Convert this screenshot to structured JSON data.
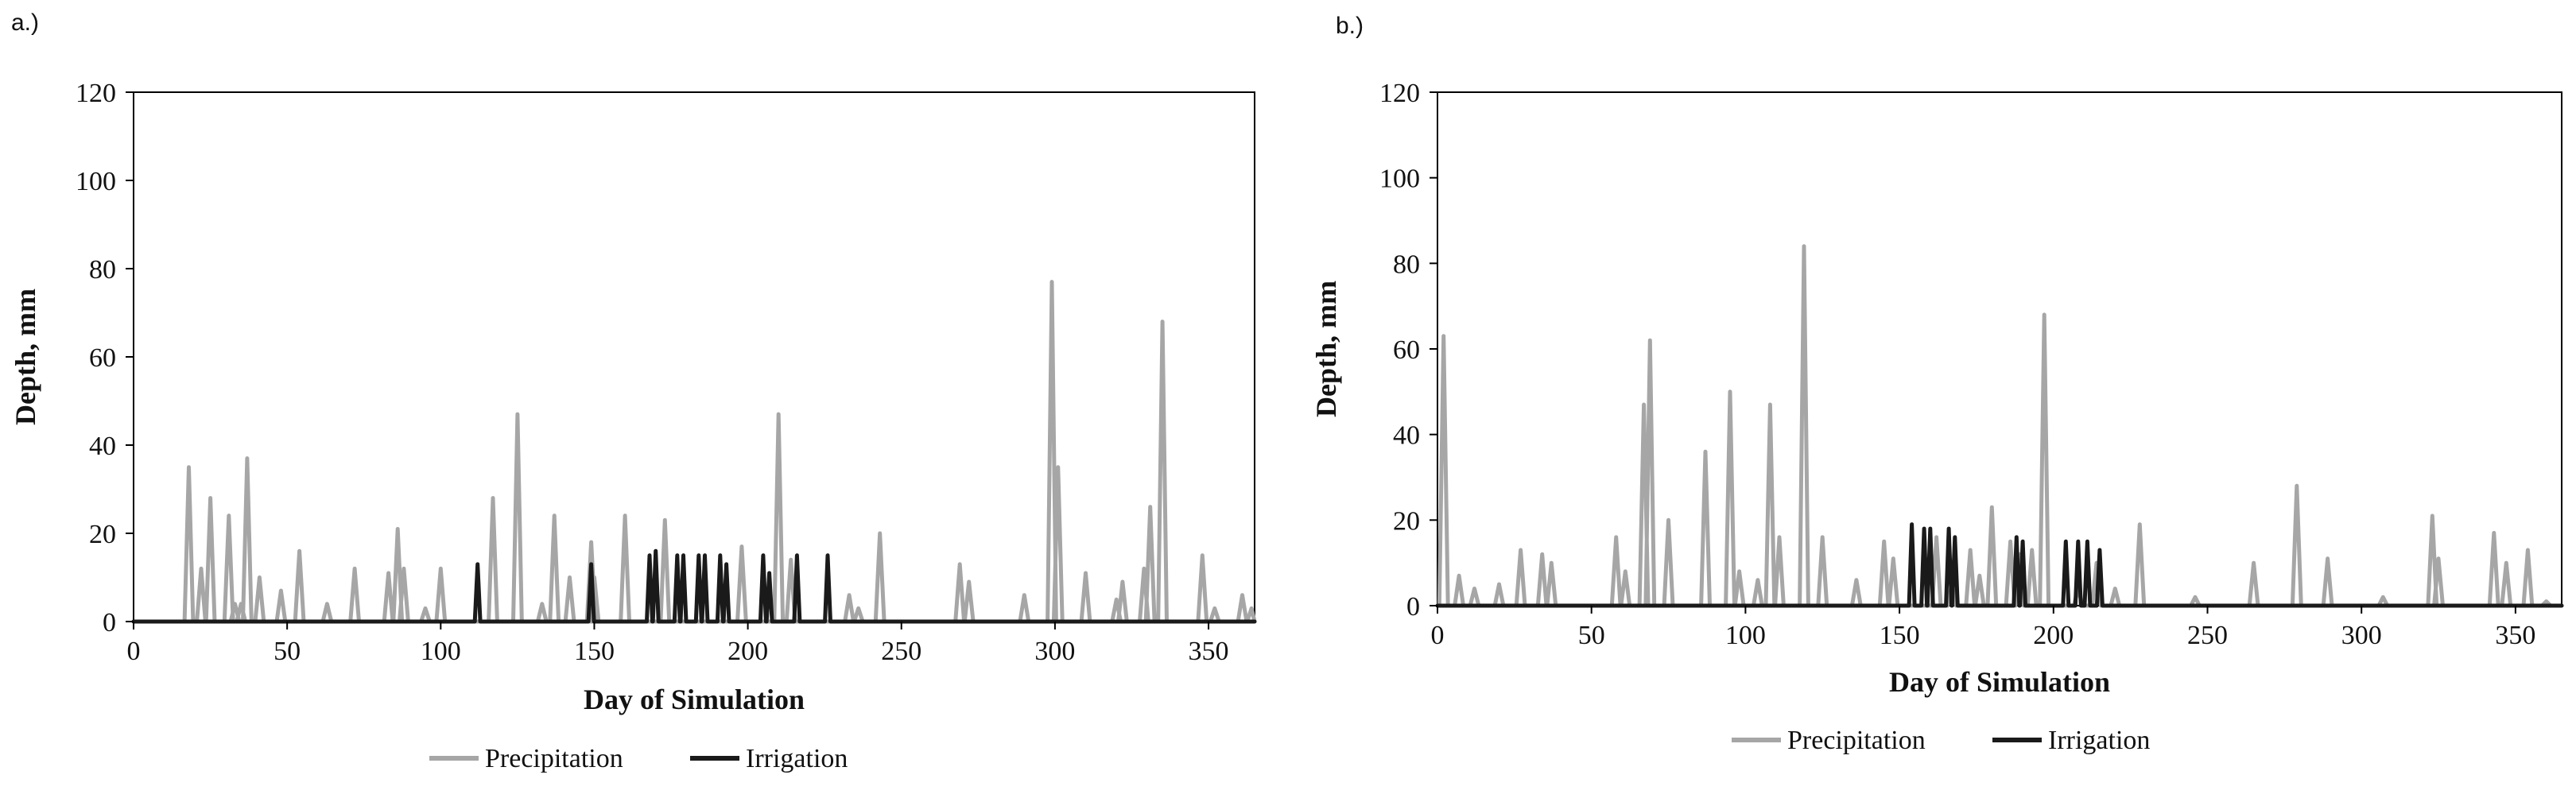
{
  "colors": {
    "precipitation": "#a6a6a6",
    "irrigation": "#1a1a1a",
    "axis": "#000000"
  },
  "chart_data": [
    {
      "panel_label": "a.)",
      "type": "line",
      "xlabel": "Day of Simulation",
      "ylabel": "Depth, mm",
      "xlim": [
        0,
        365
      ],
      "ylim": [
        0,
        120
      ],
      "xticks": [
        "0",
        "50",
        "100",
        "150",
        "200",
        "250",
        "300",
        "350"
      ],
      "yticks": [
        "0",
        "20",
        "40",
        "60",
        "80",
        "100",
        "120"
      ],
      "grid": false,
      "legend_position": "bottom-center",
      "legend": [
        "Precipitation",
        "Irrigation"
      ],
      "series": [
        {
          "name": "Precipitation",
          "color": "#a6a6a6",
          "events": [
            [
              18,
              35
            ],
            [
              22,
              12
            ],
            [
              25,
              28
            ],
            [
              31,
              24
            ],
            [
              33,
              4
            ],
            [
              35,
              4
            ],
            [
              37,
              37
            ],
            [
              41,
              10
            ],
            [
              48,
              7
            ],
            [
              54,
              16
            ],
            [
              63,
              4
            ],
            [
              72,
              12
            ],
            [
              83,
              11
            ],
            [
              86,
              21
            ],
            [
              88,
              12
            ],
            [
              95,
              3
            ],
            [
              100,
              12
            ],
            [
              117,
              28
            ],
            [
              125,
              47
            ],
            [
              133,
              4
            ],
            [
              137,
              24
            ],
            [
              142,
              10
            ],
            [
              149,
              18
            ],
            [
              150,
              10
            ],
            [
              160,
              24
            ],
            [
              173,
              23
            ],
            [
              198,
              17
            ],
            [
              210,
              47
            ],
            [
              214,
              14
            ],
            [
              233,
              6
            ],
            [
              236,
              3
            ],
            [
              243,
              20
            ],
            [
              269,
              13
            ],
            [
              272,
              9
            ],
            [
              290,
              6
            ],
            [
              299,
              77
            ],
            [
              301,
              35
            ],
            [
              310,
              11
            ],
            [
              320,
              5
            ],
            [
              322,
              9
            ],
            [
              329,
              12
            ],
            [
              331,
              26
            ],
            [
              335,
              68
            ],
            [
              348,
              15
            ],
            [
              352,
              3
            ],
            [
              361,
              6
            ],
            [
              364,
              3
            ]
          ]
        },
        {
          "name": "Irrigation",
          "color": "#1a1a1a",
          "events": [
            [
              112,
              13
            ],
            [
              149,
              13
            ],
            [
              168,
              15
            ],
            [
              170,
              16
            ],
            [
              177,
              15
            ],
            [
              179,
              15
            ],
            [
              184,
              15
            ],
            [
              186,
              15
            ],
            [
              191,
              15
            ],
            [
              193,
              13
            ],
            [
              205,
              15
            ],
            [
              207,
              11
            ],
            [
              216,
              15
            ],
            [
              226,
              15
            ]
          ]
        }
      ]
    },
    {
      "panel_label": "b.)",
      "type": "line",
      "xlabel": "Day of Simulation",
      "ylabel": "Depth, mm",
      "xlim": [
        0,
        365
      ],
      "ylim": [
        0,
        120
      ],
      "xticks": [
        "0",
        "50",
        "100",
        "150",
        "200",
        "250",
        "300",
        "350"
      ],
      "yticks": [
        "0",
        "20",
        "40",
        "60",
        "80",
        "100",
        "120"
      ],
      "grid": false,
      "legend_position": "bottom-center",
      "legend": [
        "Precipitation",
        "Irrigation"
      ],
      "series": [
        {
          "name": "Precipitation",
          "color": "#a6a6a6",
          "events": [
            [
              2,
              63
            ],
            [
              7,
              7
            ],
            [
              12,
              4
            ],
            [
              20,
              5
            ],
            [
              27,
              13
            ],
            [
              34,
              12
            ],
            [
              37,
              10
            ],
            [
              58,
              16
            ],
            [
              61,
              8
            ],
            [
              67,
              47
            ],
            [
              69,
              62
            ],
            [
              75,
              20
            ],
            [
              87,
              36
            ],
            [
              95,
              50
            ],
            [
              98,
              8
            ],
            [
              104,
              6
            ],
            [
              108,
              47
            ],
            [
              111,
              16
            ],
            [
              119,
              84
            ],
            [
              125,
              16
            ],
            [
              136,
              6
            ],
            [
              145,
              15
            ],
            [
              148,
              11
            ],
            [
              162,
              16
            ],
            [
              167,
              5
            ],
            [
              173,
              13
            ],
            [
              176,
              7
            ],
            [
              180,
              23
            ],
            [
              186,
              15
            ],
            [
              189,
              12
            ],
            [
              193,
              13
            ],
            [
              197,
              68
            ],
            [
              208,
              4
            ],
            [
              214,
              10
            ],
            [
              220,
              4
            ],
            [
              228,
              19
            ],
            [
              246,
              2
            ],
            [
              265,
              10
            ],
            [
              279,
              28
            ],
            [
              289,
              11
            ],
            [
              307,
              2
            ],
            [
              323,
              21
            ],
            [
              325,
              11
            ],
            [
              343,
              17
            ],
            [
              347,
              10
            ],
            [
              354,
              13
            ],
            [
              360,
              1
            ]
          ]
        },
        {
          "name": "Irrigation",
          "color": "#1a1a1a",
          "events": [
            [
              154,
              19
            ],
            [
              158,
              18
            ],
            [
              160,
              18
            ],
            [
              166,
              18
            ],
            [
              168,
              16
            ],
            [
              188,
              16
            ],
            [
              190,
              15
            ],
            [
              204,
              15
            ],
            [
              208,
              15
            ],
            [
              211,
              15
            ],
            [
              215,
              13
            ]
          ]
        }
      ]
    }
  ]
}
